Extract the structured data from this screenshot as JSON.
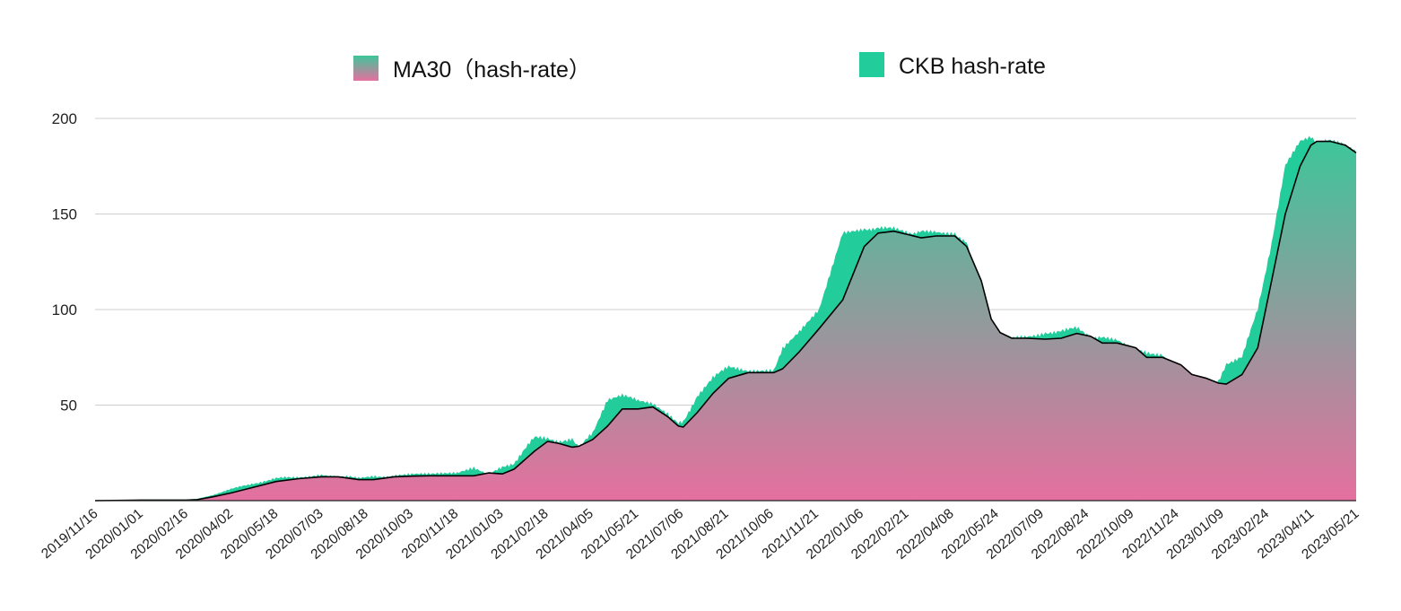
{
  "chart_data": {
    "type": "area",
    "title": "",
    "xlabel": "",
    "ylabel": "",
    "ylim": [
      0,
      200
    ],
    "y_ticks": [
      50,
      100,
      150,
      200
    ],
    "grid": "horizontal",
    "legend_position": "top",
    "x_tick_labels": [
      "2019/11/16",
      "2020/01/01",
      "2020/02/16",
      "2020/04/02",
      "2020/05/18",
      "2020/07/03",
      "2020/08/18",
      "2020/10/03",
      "2020/11/18",
      "2021/01/03",
      "2021/02/18",
      "2021/04/05",
      "2021/05/21",
      "2021/07/06",
      "2021/08/21",
      "2021/10/06",
      "2021/11/21",
      "2022/01/06",
      "2022/02/21",
      "2022/04/08",
      "2022/05/24",
      "2022/07/09",
      "2022/08/24",
      "2022/10/09",
      "2022/11/24",
      "2023/01/09",
      "2023/02/24",
      "2023/04/11",
      "2023/05/21"
    ],
    "x_start": "2019/11/16",
    "x_end": "2023/05/21",
    "series": [
      {
        "name": "MA30（hash-rate）",
        "kind": "area-line",
        "colors": {
          "top": "#3ec59a",
          "bottom": "#e5709f",
          "line": "#000000"
        },
        "points": [
          [
            "2019/11/16",
            0
          ],
          [
            "2020/01/01",
            0.3
          ],
          [
            "2020/02/16",
            0.3
          ],
          [
            "2020/02/28",
            0.5
          ],
          [
            "2020/03/15",
            2
          ],
          [
            "2020/04/02",
            4
          ],
          [
            "2020/04/25",
            7
          ],
          [
            "2020/05/18",
            10
          ],
          [
            "2020/06/10",
            11.5
          ],
          [
            "2020/07/03",
            12.5
          ],
          [
            "2020/07/20",
            12.5
          ],
          [
            "2020/08/10",
            11
          ],
          [
            "2020/08/25",
            11
          ],
          [
            "2020/09/15",
            12.5
          ],
          [
            "2020/10/03",
            12.8
          ],
          [
            "2020/10/20",
            13
          ],
          [
            "2020/11/18",
            13
          ],
          [
            "2020/12/05",
            13
          ],
          [
            "2020/12/20",
            14.5
          ],
          [
            "2021/01/03",
            14
          ],
          [
            "2021/01/15",
            16.5
          ],
          [
            "2021/02/05",
            26
          ],
          [
            "2021/02/18",
            31
          ],
          [
            "2021/03/01",
            30
          ],
          [
            "2021/03/15",
            28
          ],
          [
            "2021/03/22",
            28.5
          ],
          [
            "2021/04/05",
            32
          ],
          [
            "2021/04/20",
            39
          ],
          [
            "2021/05/05",
            48
          ],
          [
            "2021/05/21",
            48
          ],
          [
            "2021/06/05",
            49
          ],
          [
            "2021/06/20",
            44
          ],
          [
            "2021/07/01",
            39
          ],
          [
            "2021/07/06",
            38.5
          ],
          [
            "2021/07/20",
            46
          ],
          [
            "2021/08/05",
            56
          ],
          [
            "2021/08/21",
            64
          ],
          [
            "2021/09/10",
            67
          ],
          [
            "2021/10/06",
            67
          ],
          [
            "2021/10/15",
            69
          ],
          [
            "2021/11/01",
            78
          ],
          [
            "2021/11/21",
            90
          ],
          [
            "2021/12/15",
            105
          ],
          [
            "2022/01/06",
            133
          ],
          [
            "2022/01/20",
            140
          ],
          [
            "2022/02/05",
            141
          ],
          [
            "2022/02/21",
            139
          ],
          [
            "2022/03/05",
            137.5
          ],
          [
            "2022/03/20",
            138.5
          ],
          [
            "2022/04/08",
            138.5
          ],
          [
            "2022/04/20",
            133
          ],
          [
            "2022/05/05",
            115
          ],
          [
            "2022/05/15",
            95
          ],
          [
            "2022/05/24",
            88
          ],
          [
            "2022/06/05",
            85
          ],
          [
            "2022/06/20",
            85
          ],
          [
            "2022/07/09",
            84.5
          ],
          [
            "2022/07/25",
            85
          ],
          [
            "2022/08/10",
            87.5
          ],
          [
            "2022/08/24",
            86
          ],
          [
            "2022/09/05",
            82.5
          ],
          [
            "2022/09/20",
            82.5
          ],
          [
            "2022/10/09",
            80
          ],
          [
            "2022/10/20",
            75
          ],
          [
            "2022/11/05",
            75
          ],
          [
            "2022/11/24",
            71
          ],
          [
            "2022/12/05",
            66
          ],
          [
            "2022/12/20",
            64
          ],
          [
            "2023/01/01",
            61.5
          ],
          [
            "2023/01/09",
            61
          ],
          [
            "2023/01/25",
            66
          ],
          [
            "2023/02/10",
            80
          ],
          [
            "2023/02/24",
            115
          ],
          [
            "2023/03/10",
            150
          ],
          [
            "2023/03/25",
            175
          ],
          [
            "2023/04/05",
            186
          ],
          [
            "2023/04/11",
            188
          ],
          [
            "2023/04/25",
            188
          ],
          [
            "2023/05/10",
            186
          ],
          [
            "2023/05/21",
            182
          ]
        ]
      },
      {
        "name": "CKB hash-rate",
        "kind": "area",
        "colors": {
          "fill": "#22cc9b"
        },
        "points": [
          [
            "2019/11/16",
            0
          ],
          [
            "2020/01/01",
            0.5
          ],
          [
            "2020/02/16",
            0.5
          ],
          [
            "2020/02/28",
            1
          ],
          [
            "2020/03/15",
            3
          ],
          [
            "2020/04/02",
            6
          ],
          [
            "2020/04/25",
            9
          ],
          [
            "2020/05/18",
            11.5
          ],
          [
            "2020/06/10",
            12.5
          ],
          [
            "2020/07/03",
            13
          ],
          [
            "2020/07/20",
            12.5
          ],
          [
            "2020/08/10",
            12
          ],
          [
            "2020/08/25",
            12.5
          ],
          [
            "2020/09/15",
            13
          ],
          [
            "2020/10/03",
            13.5
          ],
          [
            "2020/10/20",
            14
          ],
          [
            "2020/11/18",
            14
          ],
          [
            "2020/12/05",
            17
          ],
          [
            "2020/12/20",
            14
          ],
          [
            "2021/01/03",
            17
          ],
          [
            "2021/01/15",
            20
          ],
          [
            "2021/02/05",
            33
          ],
          [
            "2021/02/18",
            32
          ],
          [
            "2021/03/01",
            30
          ],
          [
            "2021/03/15",
            33
          ],
          [
            "2021/03/22",
            28
          ],
          [
            "2021/04/05",
            35
          ],
          [
            "2021/04/20",
            52
          ],
          [
            "2021/05/05",
            55
          ],
          [
            "2021/05/21",
            52
          ],
          [
            "2021/06/05",
            50
          ],
          [
            "2021/06/20",
            45
          ],
          [
            "2021/07/01",
            40
          ],
          [
            "2021/07/06",
            41
          ],
          [
            "2021/07/20",
            55
          ],
          [
            "2021/08/05",
            64
          ],
          [
            "2021/08/21",
            70
          ],
          [
            "2021/09/10",
            68
          ],
          [
            "2021/10/06",
            68
          ],
          [
            "2021/10/15",
            80
          ],
          [
            "2021/11/01",
            88
          ],
          [
            "2021/11/21",
            100
          ],
          [
            "2021/12/15",
            140
          ],
          [
            "2022/01/06",
            142
          ],
          [
            "2022/01/20",
            143
          ],
          [
            "2022/02/05",
            142
          ],
          [
            "2022/02/21",
            140
          ],
          [
            "2022/03/05",
            141
          ],
          [
            "2022/03/20",
            141
          ],
          [
            "2022/04/08",
            140
          ],
          [
            "2022/04/20",
            135
          ],
          [
            "2022/05/05",
            110
          ],
          [
            "2022/05/15",
            93
          ],
          [
            "2022/05/24",
            88
          ],
          [
            "2022/06/05",
            85
          ],
          [
            "2022/06/20",
            86
          ],
          [
            "2022/07/09",
            88
          ],
          [
            "2022/07/25",
            89
          ],
          [
            "2022/08/10",
            90
          ],
          [
            "2022/08/24",
            86
          ],
          [
            "2022/09/05",
            85
          ],
          [
            "2022/09/20",
            84
          ],
          [
            "2022/10/09",
            80
          ],
          [
            "2022/10/20",
            78
          ],
          [
            "2022/11/05",
            76
          ],
          [
            "2022/11/24",
            68
          ],
          [
            "2022/12/05",
            65
          ],
          [
            "2022/12/20",
            63
          ],
          [
            "2023/01/01",
            62
          ],
          [
            "2023/01/09",
            72
          ],
          [
            "2023/01/25",
            75
          ],
          [
            "2023/02/10",
            100
          ],
          [
            "2023/02/24",
            135
          ],
          [
            "2023/03/10",
            175
          ],
          [
            "2023/03/25",
            188
          ],
          [
            "2023/04/05",
            190
          ],
          [
            "2023/04/11",
            188
          ],
          [
            "2023/04/25",
            188
          ],
          [
            "2023/05/10",
            186
          ],
          [
            "2023/05/21",
            182
          ]
        ]
      }
    ]
  }
}
